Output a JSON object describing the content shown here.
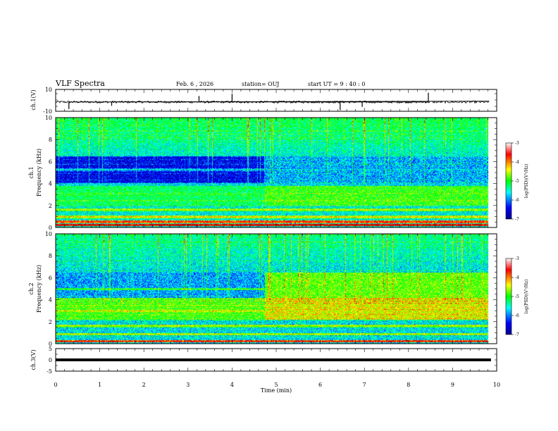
{
  "header": {
    "title": "VLF Spectra",
    "date": "Feb. 6 , 2026",
    "station": "station= OUJ",
    "start_ut": "start UT = 9 : 40 : 0"
  },
  "chart_data": [
    {
      "type": "line",
      "ylabel": "ch.1(V)",
      "ylim": [
        -10,
        10
      ],
      "y_ticks": [
        "10",
        "-10"
      ],
      "x_range_min": [
        0,
        10
      ],
      "baseline_v": -1.5,
      "noise_amp_v": 1.0,
      "spike_times_min": [
        0.3,
        1.27,
        3.25,
        4.0,
        6.45,
        6.95,
        8.45
      ],
      "spike_values_v": [
        -8,
        -5,
        4,
        6,
        -9,
        -6,
        7
      ]
    },
    {
      "type": "heatmap",
      "ylabel": "ch.1\nFrequency (kHz)",
      "ylim_khz": [
        0,
        10
      ],
      "y_ticks": [
        "0",
        "2",
        "4",
        "6",
        "8",
        "10"
      ],
      "data_end_min": 9.82,
      "change_time_min": 4.75,
      "colorbar": {
        "label": "log(PSD)(V²/Hz)",
        "range": [
          -7,
          -3
        ],
        "ticks": [
          "-3",
          "-4",
          "-5",
          "-6",
          "-7"
        ]
      },
      "bands_khz": [
        {
          "freq": 0.25,
          "level": -3.4
        },
        {
          "freq": 0.55,
          "level": -3.6
        },
        {
          "freq": 1.0,
          "level": -4.2
        },
        {
          "freq": 1.65,
          "level": -4.4
        },
        {
          "freq": 2.5,
          "level": -5.1
        },
        {
          "freq": 3.0,
          "level": -4.9
        },
        {
          "freq": 5.3,
          "level": -5.6
        }
      ]
    },
    {
      "type": "heatmap",
      "ylabel": "ch.2\nFrequency (kHz)",
      "ylim_khz": [
        0,
        10
      ],
      "y_ticks": [
        "0",
        "2",
        "4",
        "6",
        "8",
        "10"
      ],
      "data_end_min": 9.82,
      "change_time_min": 4.75,
      "colorbar": {
        "label": "log(PSD)(V²/Hz)",
        "range": [
          -7,
          -3
        ],
        "ticks": [
          "-3",
          "-4",
          "-5",
          "-6",
          "-7"
        ]
      },
      "bands_khz": [
        {
          "freq": 0.25,
          "level": -3.6
        },
        {
          "freq": 0.9,
          "level": -4.4
        },
        {
          "freq": 1.65,
          "level": -4.5
        },
        {
          "freq": 3.0,
          "level": -4.3
        },
        {
          "freq": 3.5,
          "level": -4.5
        },
        {
          "freq": 5.0,
          "level": -4.9
        }
      ]
    },
    {
      "type": "line",
      "ylabel": "ch.3(V)",
      "ylim": [
        -5,
        5
      ],
      "y_ticks": [
        "5",
        "0",
        "-5"
      ],
      "x_range_min": [
        0,
        10
      ],
      "baseline_v": 0
    }
  ],
  "x_axis": {
    "label": "Time (min)",
    "range": [
      0,
      10
    ],
    "ticks": [
      "0",
      "1",
      "2",
      "3",
      "4",
      "5",
      "6",
      "7",
      "8",
      "9",
      "10"
    ]
  },
  "colors": {
    "jet_stops": [
      "#00008f",
      "#0000ff",
      "#00ffff",
      "#00ff00",
      "#ffff00",
      "#ff0000",
      "#8f0000"
    ]
  }
}
